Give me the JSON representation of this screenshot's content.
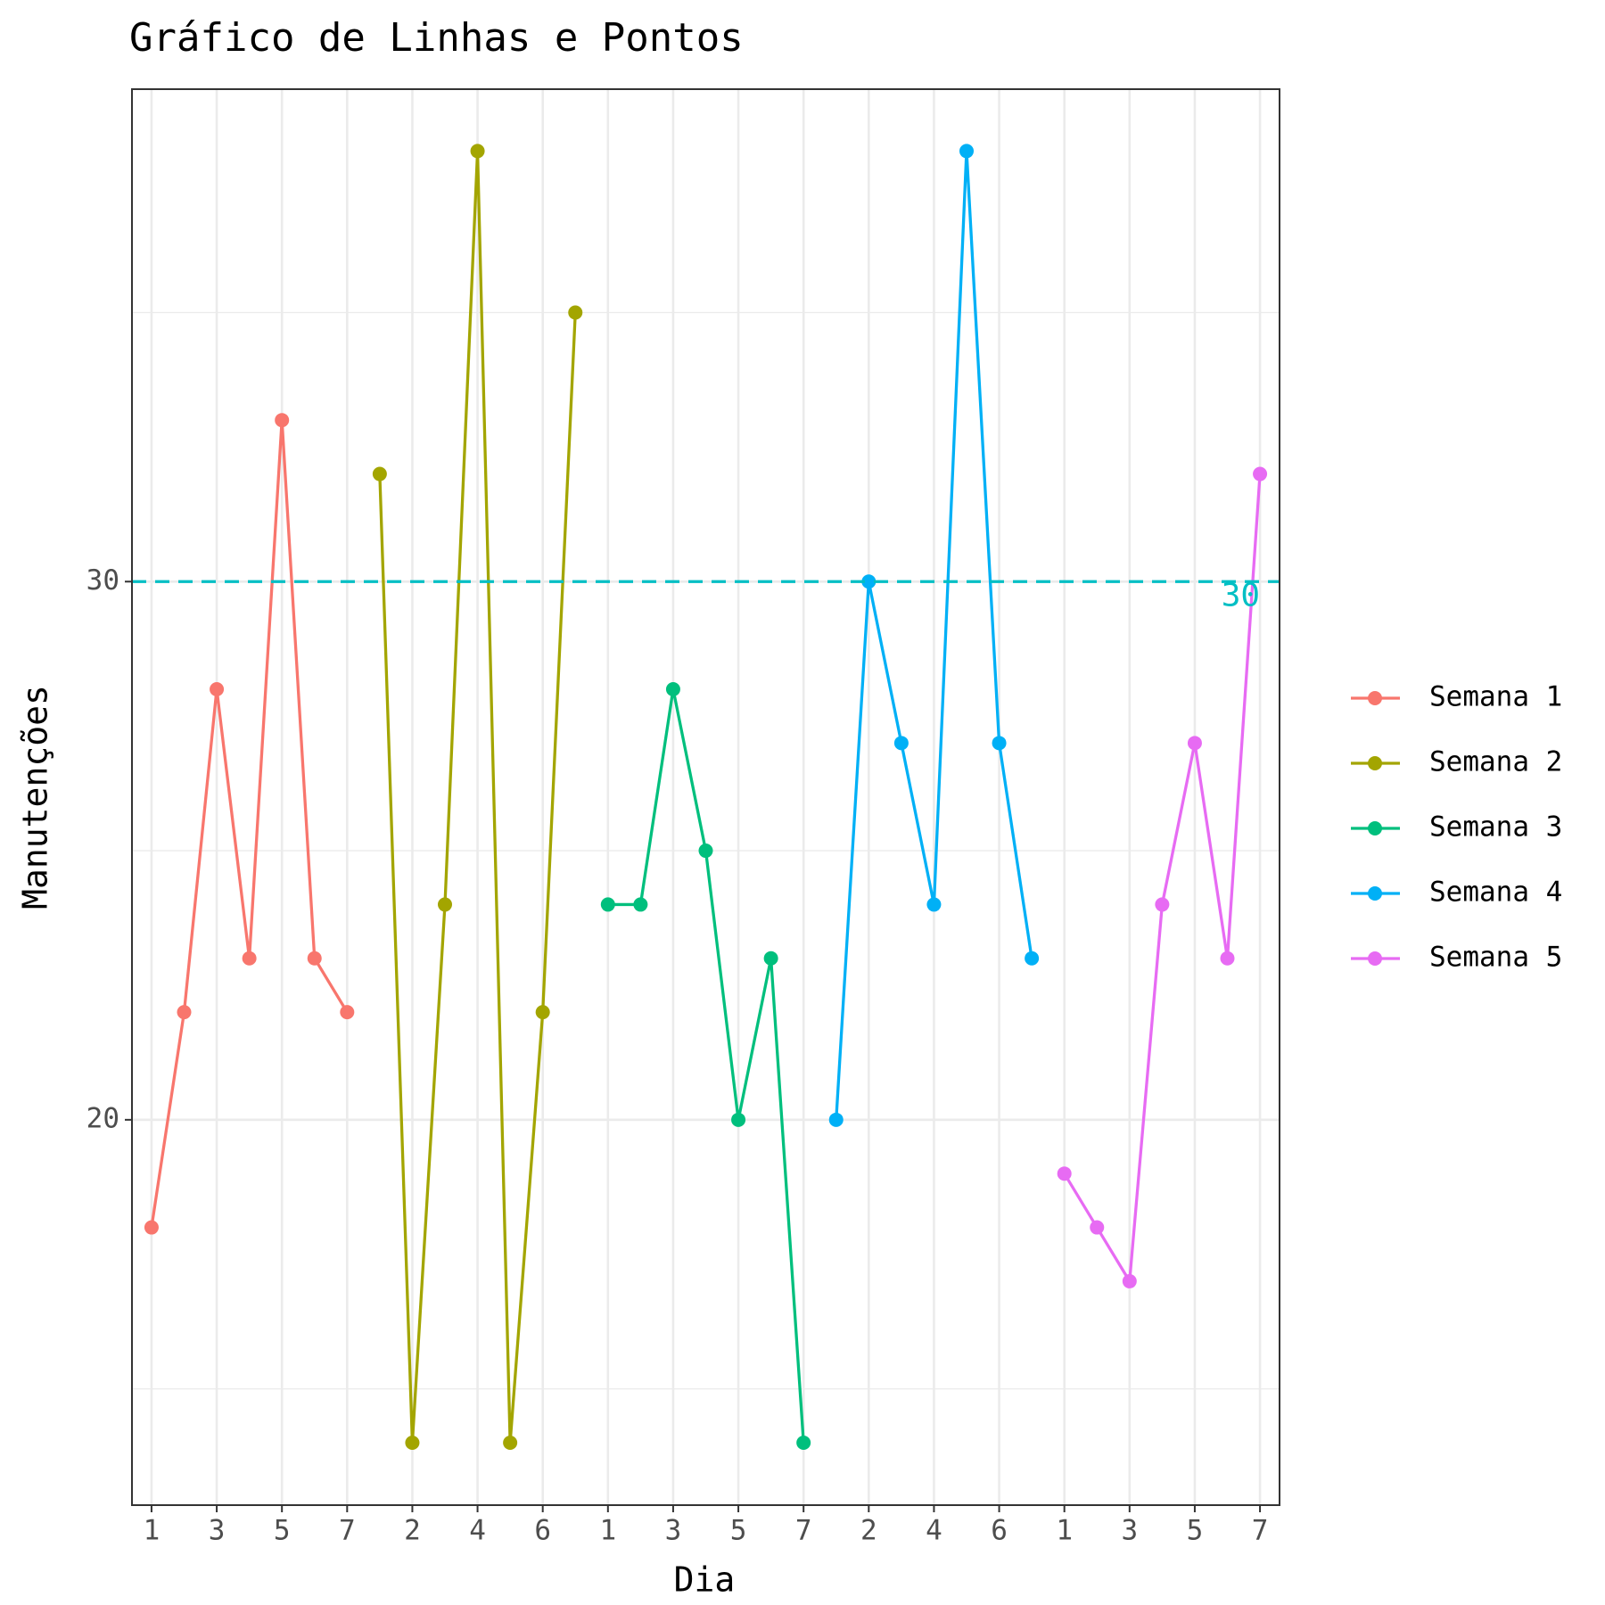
{
  "chart_data": {
    "type": "line",
    "title": "Gráfico de Linhas e Pontos",
    "x_label": "Dia",
    "y_label": "Manutenções",
    "categories": [
      "1",
      null,
      "3",
      null,
      "5",
      null,
      "7",
      null,
      "2",
      null,
      "4",
      null,
      "6",
      null,
      "1",
      null,
      "3",
      null,
      "5",
      null,
      "7",
      null,
      "2",
      null,
      "4",
      null,
      "6",
      null,
      "1",
      null,
      "3",
      null,
      "5",
      null,
      "7"
    ],
    "series": [
      {
        "name": "Semana 1",
        "color": "#F8766D",
        "values": [
          18,
          22,
          28,
          23,
          33,
          23,
          22,
          null,
          null,
          null,
          null,
          null,
          null,
          null,
          null,
          null,
          null,
          null,
          null,
          null,
          null,
          null,
          null,
          null,
          null,
          null,
          null,
          null,
          null,
          null,
          null,
          null,
          null,
          null,
          null
        ]
      },
      {
        "name": "Semana 2",
        "color": "#A3A500",
        "values": [
          null,
          null,
          null,
          null,
          null,
          null,
          null,
          32,
          14,
          24,
          38,
          14,
          22,
          35,
          null,
          null,
          null,
          null,
          null,
          null,
          null,
          null,
          null,
          null,
          null,
          null,
          null,
          null,
          null,
          null,
          null,
          null,
          null,
          null,
          null
        ]
      },
      {
        "name": "Semana 3",
        "color": "#00BF7D",
        "values": [
          null,
          null,
          null,
          null,
          null,
          null,
          null,
          null,
          null,
          null,
          null,
          null,
          null,
          null,
          24,
          24,
          28,
          25,
          20,
          23,
          14,
          null,
          null,
          null,
          null,
          null,
          null,
          null,
          null,
          null,
          null,
          null,
          null,
          null,
          null
        ]
      },
      {
        "name": "Semana 4",
        "color": "#00B0F6",
        "values": [
          null,
          null,
          null,
          null,
          null,
          null,
          null,
          null,
          null,
          null,
          null,
          null,
          null,
          null,
          null,
          null,
          null,
          null,
          null,
          null,
          null,
          20,
          30,
          27,
          24,
          38,
          27,
          23,
          null,
          null,
          null,
          null,
          null,
          null,
          null
        ]
      },
      {
        "name": "Semana 5",
        "color": "#E76BF3",
        "values": [
          null,
          null,
          null,
          null,
          null,
          null,
          null,
          null,
          null,
          null,
          null,
          null,
          null,
          null,
          null,
          null,
          null,
          null,
          null,
          null,
          null,
          null,
          null,
          null,
          null,
          null,
          null,
          null,
          19,
          18,
          17,
          24,
          27,
          23,
          32
        ]
      }
    ],
    "ylim": [
      12.84,
      39.15
    ],
    "yticks": [
      20,
      30
    ],
    "minor_yticks": [
      15,
      25,
      35
    ],
    "grid": true,
    "hline": {
      "value": 30,
      "color": "#00BFC4"
    },
    "legend": "right"
  }
}
